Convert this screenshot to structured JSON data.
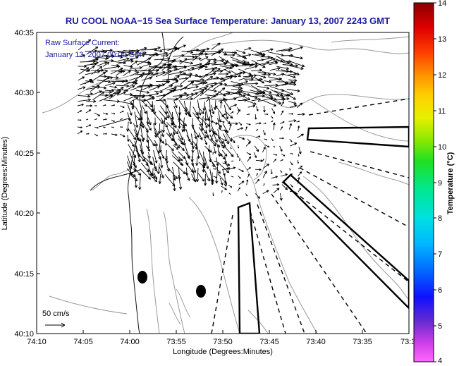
{
  "title": "RU COOL  NOAA−15  Sea Surface Temperature:  January 13, 2007 2243 GMT",
  "current_label": "Raw Surface Current:",
  "current_time": "January 13, 2007 00:00 GMT",
  "scale_label": "50 cm/s",
  "x_axis_label": "Longitude (Degrees:Minutes)",
  "y_axis_label": "Latitude (Degrees:Minutes)",
  "colorbar_label": "Temperature (°C)",
  "x_ticks": [
    "74:10",
    "74:05",
    "74:00",
    "73:55",
    "73:50",
    "73:45",
    "73:40",
    "73:35",
    "73:3"
  ],
  "y_ticks": [
    "40:35",
    "40:30",
    "40:25",
    "40:20",
    "40:15",
    "40:10"
  ],
  "colorbar_ticks": [
    "14",
    "13",
    "12",
    "11",
    "10",
    "9",
    "8",
    "7",
    "6",
    "5",
    "4"
  ],
  "colors": {
    "title": "#1a1aa0",
    "land_contour": "#9a9a9a",
    "coast": "#111111",
    "vectors": "#000000"
  }
}
